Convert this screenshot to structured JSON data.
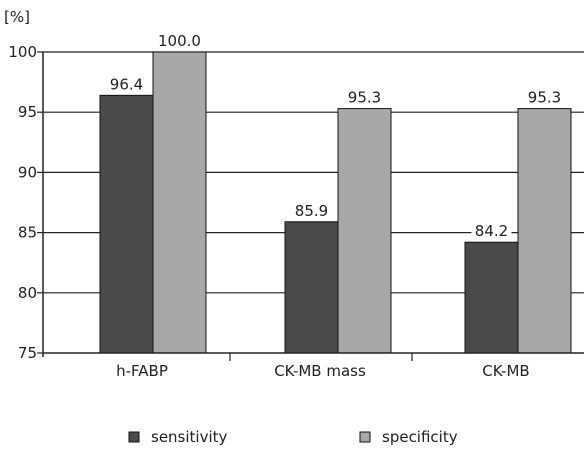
{
  "chart_data": {
    "type": "bar",
    "ylabel": "[%]",
    "ylim": [
      75,
      100
    ],
    "yticks": [
      "75",
      "80",
      "85",
      "90",
      "95",
      "100"
    ],
    "categories": [
      "h-FABP",
      "CK-MB mass",
      "CK-MB"
    ],
    "series": [
      {
        "name": "sensitivity",
        "color": "#4a4a4a",
        "values": [
          96.4,
          85.9,
          84.2
        ],
        "labels": [
          "96.4",
          "85.9",
          "84.2"
        ]
      },
      {
        "name": "specificity",
        "color": "#a8a8a8",
        "values": [
          100.0,
          95.3,
          95.3
        ],
        "labels": [
          "100.0",
          "95.3",
          "95.3"
        ]
      }
    ],
    "grid": true,
    "legend": "bottom"
  }
}
